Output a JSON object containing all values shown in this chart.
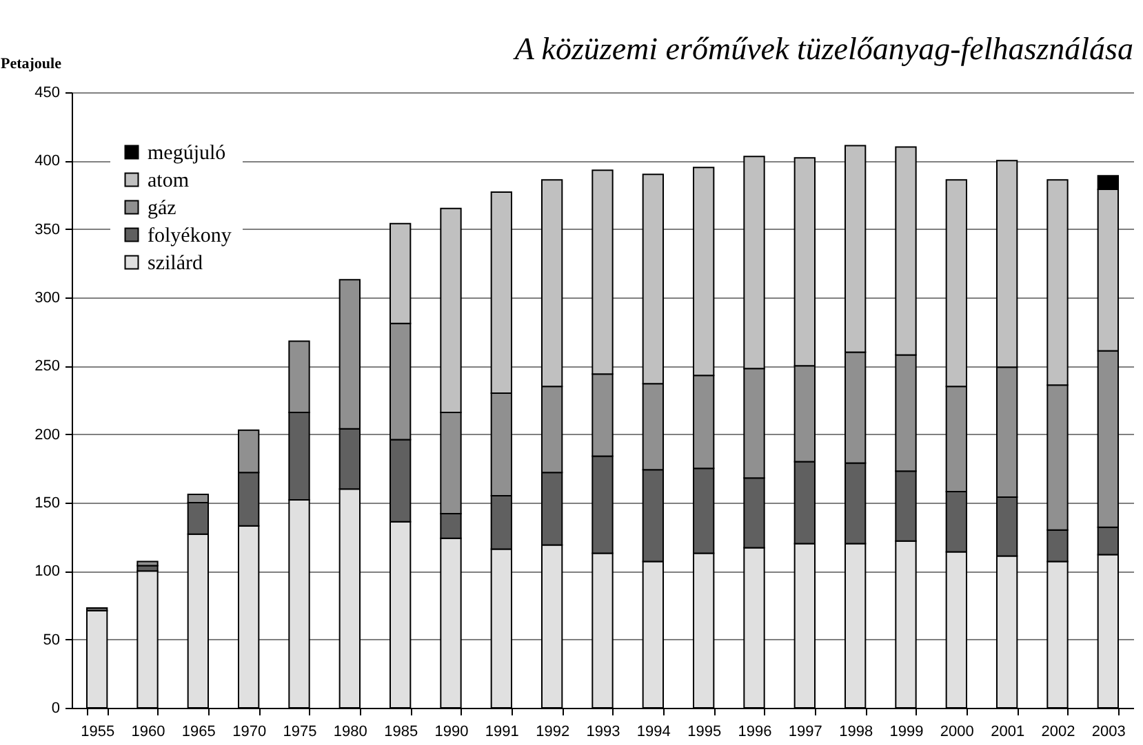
{
  "chart_data": {
    "type": "bar",
    "title": "A közüzemi erőművek tüzelőanyag-felhasználása",
    "ylabel": "Petajoule",
    "categories": [
      "1955",
      "1960",
      "1965",
      "1970",
      "1975",
      "1980",
      "1985",
      "1990",
      "1991",
      "1992",
      "1993",
      "1994",
      "1995",
      "1996",
      "1997",
      "1998",
      "1999",
      "2000",
      "2001",
      "2002",
      "2003"
    ],
    "stacked": true,
    "series": [
      {
        "name": "szilárd",
        "color": "#e0e0e0",
        "values": [
          71,
          100,
          127,
          133,
          152,
          160,
          136,
          124,
          116,
          119,
          113,
          107,
          113,
          117,
          120,
          120,
          122,
          114,
          111,
          107,
          112
        ]
      },
      {
        "name": "folyékony",
        "color": "#606060",
        "values": [
          2,
          4,
          23,
          39,
          64,
          44,
          60,
          18,
          39,
          53,
          71,
          67,
          62,
          51,
          60,
          59,
          51,
          44,
          43,
          23,
          20
        ]
      },
      {
        "name": "gáz",
        "color": "#909090",
        "values": [
          null,
          3,
          6,
          31,
          52,
          109,
          85,
          74,
          75,
          63,
          60,
          63,
          68,
          80,
          70,
          81,
          85,
          77,
          95,
          106,
          129
        ]
      },
      {
        "name": "atom",
        "color": "#c0c0c0",
        "values": [
          null,
          null,
          null,
          null,
          null,
          null,
          73,
          149,
          147,
          151,
          149,
          153,
          152,
          155,
          152,
          151,
          152,
          151,
          151,
          150,
          118
        ]
      },
      {
        "name": "megújuló",
        "color": "#000000",
        "values": [
          null,
          null,
          null,
          null,
          null,
          null,
          null,
          null,
          null,
          null,
          null,
          null,
          null,
          null,
          null,
          null,
          null,
          null,
          null,
          null,
          10
        ]
      }
    ],
    "ylim": [
      0,
      450
    ],
    "yticks": [
      0,
      50,
      100,
      150,
      200,
      250,
      300,
      350,
      400,
      450
    ],
    "grid": "y",
    "legend": "top left"
  }
}
